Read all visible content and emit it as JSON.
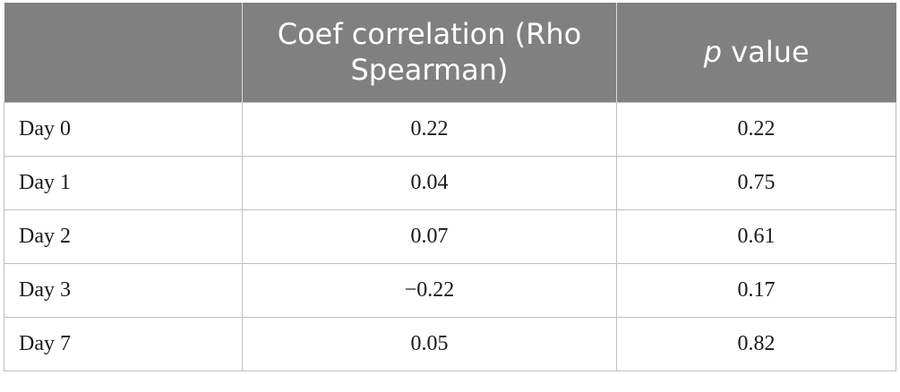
{
  "table": {
    "columns": [
      "",
      "Coef correlation (Rho Spearman)",
      {
        "italic": "p",
        "rest": " value"
      }
    ],
    "rows": [
      {
        "label": "Day 0",
        "coef": "0.22",
        "p": "0.22"
      },
      {
        "label": "Day 1",
        "coef": "0.04",
        "p": "0.75"
      },
      {
        "label": "Day 2",
        "coef": "0.07",
        "p": "0.61"
      },
      {
        "label": "Day 3",
        "coef": "−0.22",
        "p": "0.17"
      },
      {
        "label": "Day 7",
        "coef": "0.05",
        "p": "0.82"
      }
    ]
  },
  "colors": {
    "header_bg": "#808080",
    "header_text": "#ffffff",
    "grid": "#bfbfbf"
  }
}
